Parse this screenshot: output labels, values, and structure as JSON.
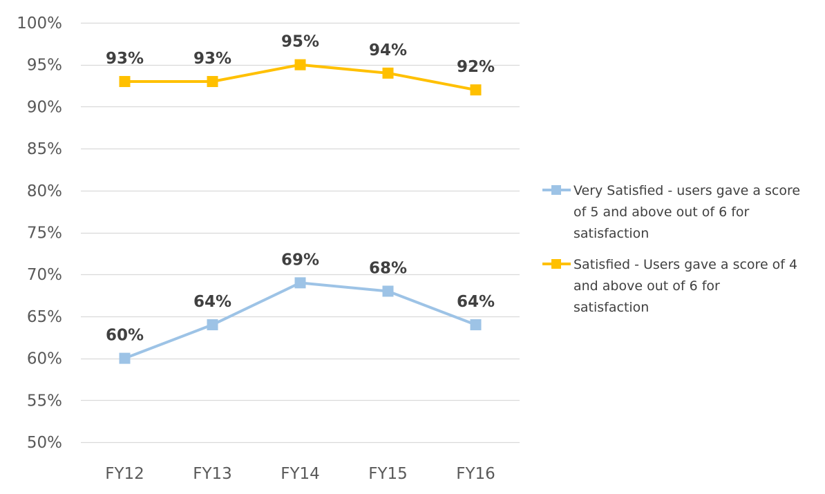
{
  "chart_data": {
    "type": "line",
    "categories": [
      "FY12",
      "FY13",
      "FY14",
      "FY15",
      "FY16"
    ],
    "ylim": [
      0.5,
      1.0
    ],
    "yticks": [
      0.5,
      0.55,
      0.6,
      0.65,
      0.7,
      0.75,
      0.8,
      0.85,
      0.9,
      0.95,
      1.0
    ],
    "ytick_labels": [
      "50%",
      "55%",
      "60%",
      "65%",
      "70%",
      "75%",
      "80%",
      "85%",
      "90%",
      "95%",
      "100%"
    ],
    "grid": "horizontal",
    "legend_position": "right",
    "series": [
      {
        "name": "Very Satisfied - users gave a score of 5 and above out of 6 for satisfaction",
        "legend_lines": [
          "Very Satisfied - users gave a score",
          "of 5 and above out of 6 for",
          "satisfaction"
        ],
        "color": "#9dc3e6",
        "values": [
          0.6,
          0.64,
          0.69,
          0.68,
          0.64
        ],
        "labels": [
          "60%",
          "64%",
          "69%",
          "68%",
          "64%"
        ]
      },
      {
        "name": "Satisfied - Users gave a score of 4 and above out of 6 for satisfaction",
        "legend_lines": [
          "Satisfied - Users gave a score of 4",
          "and above out of 6 for",
          "satisfaction"
        ],
        "color": "#ffc000",
        "values": [
          0.93,
          0.93,
          0.95,
          0.94,
          0.92
        ],
        "labels": [
          "93%",
          "93%",
          "95%",
          "94%",
          "92%"
        ]
      }
    ]
  }
}
